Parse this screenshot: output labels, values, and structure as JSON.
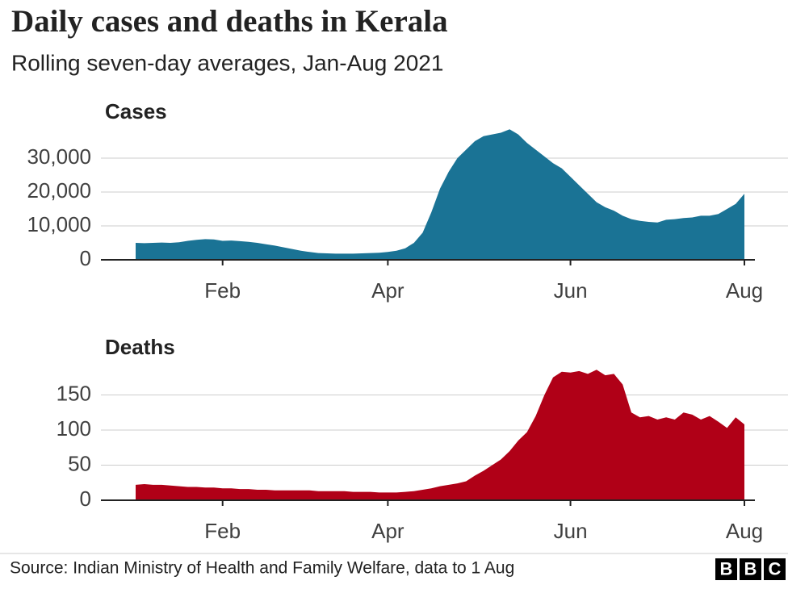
{
  "title": "Daily cases and deaths in Kerala",
  "subtitle": "Rolling seven-day averages, Jan-Aug 2021",
  "source": "Source: Indian Ministry of Health and Family Welfare, data to 1 Aug",
  "logo": [
    "B",
    "B",
    "C"
  ],
  "chart_data": [
    {
      "type": "area",
      "title": "Cases",
      "color": "#1a7395",
      "categories": [
        null,
        null,
        null,
        null,
        null,
        null,
        null,
        null,
        null,
        null,
        "Feb",
        null,
        null,
        null,
        null,
        null,
        null,
        null,
        null,
        null,
        null,
        null,
        null,
        null,
        null,
        null,
        null,
        null,
        null,
        "Apr",
        null,
        null,
        null,
        null,
        null,
        null,
        null,
        null,
        null,
        null,
        null,
        null,
        null,
        null,
        null,
        null,
        null,
        null,
        null,
        null,
        "Jun",
        null,
        null,
        null,
        null,
        null,
        null,
        null,
        null,
        null,
        null,
        null,
        null,
        null,
        null,
        null,
        null,
        null,
        null,
        null,
        "Aug"
      ],
      "values": [
        5000,
        4900,
        5000,
        5100,
        5000,
        5200,
        5600,
        5900,
        6100,
        6000,
        5600,
        5700,
        5500,
        5300,
        5000,
        4600,
        4200,
        3700,
        3200,
        2700,
        2300,
        2000,
        1900,
        1800,
        1800,
        1800,
        1900,
        2000,
        2100,
        2300,
        2700,
        3400,
        5000,
        8000,
        14000,
        21000,
        26000,
        30000,
        32500,
        35000,
        36500,
        37000,
        37500,
        38500,
        37000,
        34500,
        32500,
        30500,
        28500,
        27000,
        24500,
        22000,
        19500,
        17000,
        15500,
        14500,
        13000,
        12000,
        11500,
        11200,
        11000,
        11800,
        12000,
        12300,
        12500,
        13000,
        13000,
        13500,
        15000,
        16500,
        19500
      ],
      "ylim": [
        0,
        40000
      ],
      "yticks": [
        0,
        {
          "value": 10000,
          "label": "10,000"
        },
        {
          "value": 20000,
          "label": "20,000"
        },
        {
          "value": 30000,
          "label": "30,000"
        }
      ],
      "grid": true
    },
    {
      "type": "area",
      "title": "Deaths",
      "color": "#b00017",
      "categories": [
        null,
        null,
        null,
        null,
        null,
        null,
        null,
        null,
        null,
        null,
        "Feb",
        null,
        null,
        null,
        null,
        null,
        null,
        null,
        null,
        null,
        null,
        null,
        null,
        null,
        null,
        null,
        null,
        null,
        null,
        "Apr",
        null,
        null,
        null,
        null,
        null,
        null,
        null,
        null,
        null,
        null,
        null,
        null,
        null,
        null,
        null,
        null,
        null,
        null,
        null,
        null,
        "Jun",
        null,
        null,
        null,
        null,
        null,
        null,
        null,
        null,
        null,
        null,
        null,
        null,
        null,
        null,
        null,
        null,
        null,
        null,
        null,
        "Aug"
      ],
      "values": [
        22,
        23,
        22,
        22,
        21,
        20,
        19,
        19,
        18,
        18,
        17,
        17,
        16,
        16,
        15,
        15,
        14,
        14,
        14,
        14,
        14,
        13,
        13,
        13,
        13,
        12,
        12,
        12,
        11,
        11,
        11,
        12,
        13,
        15,
        17,
        20,
        22,
        24,
        27,
        35,
        42,
        50,
        58,
        70,
        85,
        97,
        120,
        150,
        175,
        183,
        182,
        184,
        180,
        186,
        178,
        180,
        165,
        125,
        118,
        120,
        115,
        118,
        115,
        125,
        122,
        115,
        120,
        112,
        103,
        118,
        108
      ],
      "ylim": [
        0,
        200
      ],
      "yticks": [
        0,
        50,
        100,
        150
      ],
      "grid": true
    }
  ]
}
